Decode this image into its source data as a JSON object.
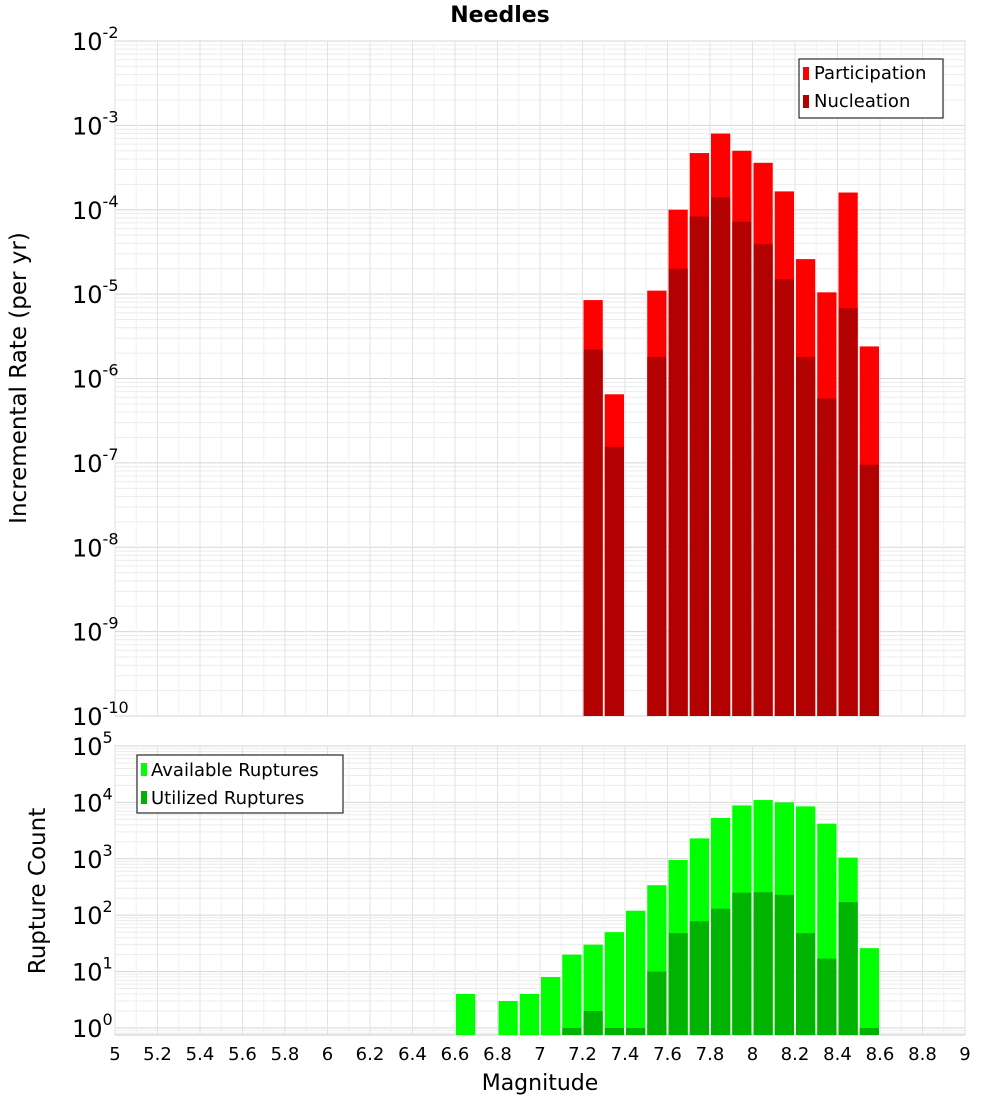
{
  "chart_data": [
    {
      "type": "bar",
      "title": "Needles",
      "ylabel": "Incremental Rate (per yr)",
      "xlabel": "",
      "xlim": [
        5,
        9
      ],
      "ylim": [
        1e-10,
        0.01
      ],
      "yscale": "log",
      "grid": true,
      "legend_position": "top-right",
      "y_ticks": [
        {
          "base": "10",
          "exp": "-2"
        },
        {
          "base": "10",
          "exp": "-3"
        },
        {
          "base": "10",
          "exp": "-4"
        },
        {
          "base": "10",
          "exp": "-5"
        },
        {
          "base": "10",
          "exp": "-6"
        },
        {
          "base": "10",
          "exp": "-7"
        },
        {
          "base": "10",
          "exp": "-8"
        },
        {
          "base": "10",
          "exp": "-9"
        },
        {
          "base": "10",
          "exp": "-10"
        }
      ],
      "series": [
        {
          "name": "Participation",
          "color": "#ff0000",
          "x": [
            7.25,
            7.35,
            7.55,
            7.65,
            7.75,
            7.85,
            7.95,
            8.05,
            8.15,
            8.25,
            8.35,
            8.45,
            8.55
          ],
          "values": [
            8.5e-06,
            6.5e-07,
            1.1e-05,
            0.0001,
            0.00047,
            0.0008,
            0.0005,
            0.00036,
            0.000165,
            2.6e-05,
            1.05e-05,
            0.00016,
            2.4e-06
          ]
        },
        {
          "name": "Nucleation",
          "color": "#b30000",
          "x": [
            7.25,
            7.35,
            7.55,
            7.65,
            7.75,
            7.85,
            7.95,
            8.05,
            8.15,
            8.25,
            8.35,
            8.45,
            8.55
          ],
          "values": [
            2.2e-06,
            1.55e-07,
            1.8e-06,
            2e-05,
            8.3e-05,
            0.00014,
            7.2e-05,
            3.9e-05,
            1.5e-05,
            1.8e-06,
            5.8e-07,
            6.8e-06,
            9.5e-08
          ]
        }
      ]
    },
    {
      "type": "bar",
      "title": "",
      "ylabel": "Rupture Count",
      "xlabel": "Magnitude",
      "xlim": [
        5,
        9
      ],
      "ylim": [
        0.75,
        100000.0
      ],
      "yscale": "log",
      "grid": true,
      "legend_position": "top-left",
      "x_ticks": [
        "5",
        "5.2",
        "5.4",
        "5.6",
        "5.8",
        "6",
        "6.2",
        "6.4",
        "6.6",
        "6.8",
        "7",
        "7.2",
        "7.4",
        "7.6",
        "7.8",
        "8",
        "8.2",
        "8.4",
        "8.6",
        "8.8",
        "9"
      ],
      "y_ticks": [
        {
          "base": "10",
          "exp": "5"
        },
        {
          "base": "10",
          "exp": "4"
        },
        {
          "base": "10",
          "exp": "3"
        },
        {
          "base": "10",
          "exp": "2"
        },
        {
          "base": "10",
          "exp": "1"
        },
        {
          "base": "10",
          "exp": "0"
        }
      ],
      "series": [
        {
          "name": "Available Ruptures",
          "color": "#00ff00",
          "x": [
            6.65,
            6.85,
            6.95,
            7.05,
            7.15,
            7.25,
            7.35,
            7.45,
            7.55,
            7.65,
            7.75,
            7.85,
            7.95,
            8.05,
            8.15,
            8.25,
            8.35,
            8.45,
            8.55
          ],
          "values": [
            4,
            3,
            4,
            8,
            20,
            30,
            50,
            120,
            340,
            950,
            2300,
            5300,
            8800,
            11000,
            10000,
            8500,
            4200,
            1050,
            26
          ]
        },
        {
          "name": "Utilized Ruptures",
          "color": "#00b300",
          "x": [
            7.15,
            7.25,
            7.35,
            7.45,
            7.55,
            7.65,
            7.75,
            7.85,
            7.95,
            8.05,
            8.15,
            8.25,
            8.35,
            8.45,
            8.55
          ],
          "values": [
            1,
            2,
            1,
            1,
            10,
            48,
            78,
            130,
            250,
            255,
            230,
            48,
            17,
            170,
            1
          ]
        }
      ]
    }
  ]
}
